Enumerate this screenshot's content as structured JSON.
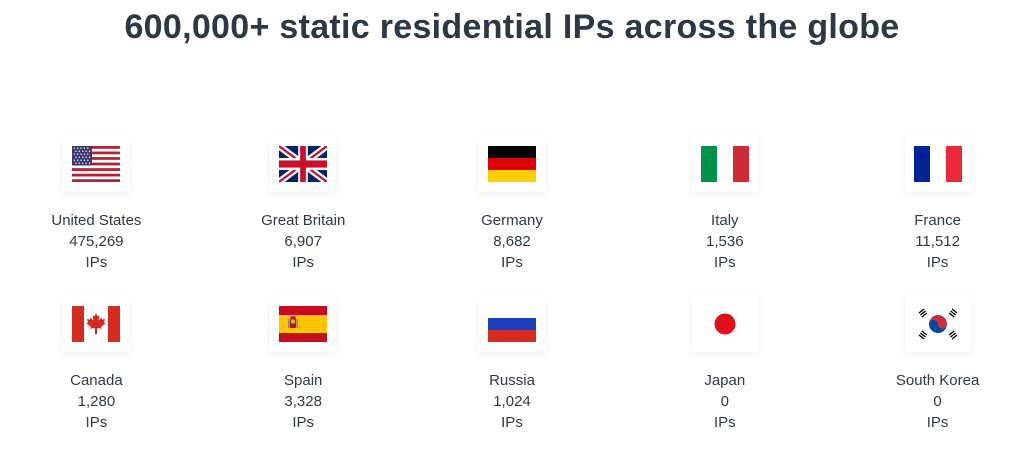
{
  "headline": "600,000+ static residential IPs across the globe",
  "countries": [
    {
      "name": "United States",
      "count": "475,269",
      "unit": "IPs",
      "icon": "us-flag-icon"
    },
    {
      "name": "Great Britain",
      "count": "6,907",
      "unit": "IPs",
      "icon": "gb-flag-icon"
    },
    {
      "name": "Germany",
      "count": "8,682",
      "unit": "IPs",
      "icon": "de-flag-icon"
    },
    {
      "name": "Italy",
      "count": "1,536",
      "unit": "IPs",
      "icon": "it-flag-icon"
    },
    {
      "name": "France",
      "count": "11,512",
      "unit": "IPs",
      "icon": "fr-flag-icon"
    },
    {
      "name": "Canada",
      "count": "1,280",
      "unit": "IPs",
      "icon": "ca-flag-icon"
    },
    {
      "name": "Spain",
      "count": "3,328",
      "unit": "IPs",
      "icon": "es-flag-icon"
    },
    {
      "name": "Russia",
      "count": "1,024",
      "unit": "IPs",
      "icon": "ru-flag-icon"
    },
    {
      "name": "Japan",
      "count": "0",
      "unit": "IPs",
      "icon": "jp-flag-icon"
    },
    {
      "name": "South Korea",
      "count": "0",
      "unit": "IPs",
      "icon": "kr-flag-icon"
    }
  ],
  "colors": {
    "text": "#2f3a45",
    "headline": "#2b3845"
  }
}
